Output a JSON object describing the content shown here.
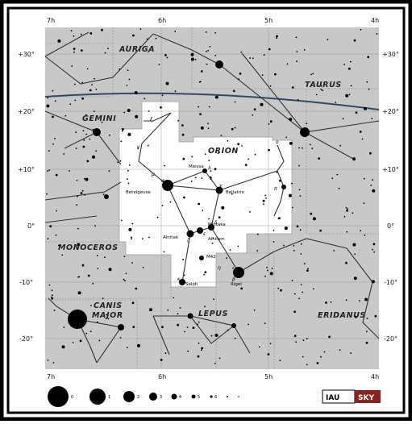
{
  "map": {
    "constellations": [
      {
        "key": "auriga",
        "label": "AURIGA"
      },
      {
        "key": "taurus",
        "label": "TAURUS"
      },
      {
        "key": "gemini",
        "label": "GEMINI"
      },
      {
        "key": "orion",
        "label": "ORION"
      },
      {
        "key": "monoceros",
        "label": "MONOCEROS"
      },
      {
        "key": "canis_major",
        "label_line1": "CANIS",
        "label_line2": "MAJOR"
      },
      {
        "key": "lepus",
        "label": "LEPUS"
      },
      {
        "key": "eridanus",
        "label": "ERIDANUS"
      }
    ],
    "ra_labels": [
      "7h",
      "6h",
      "5h",
      "4h"
    ],
    "dec_labels": [
      "+30°",
      "+20°",
      "+10°",
      "0°",
      "-10°",
      "-20°"
    ],
    "stars": {
      "betelgeuse": "Betelgeuse",
      "bellatrix": "Bellatrix",
      "meissa": "Meissa",
      "mintaka": "Mintaka",
      "alnitak": "Alnitak",
      "alnilam": "Alnilam",
      "m42": "M42",
      "saiph": "Saiph",
      "rigel": "Rigel"
    },
    "bayer": {
      "alpha": "α",
      "gamma": "γ",
      "lambda": "λ",
      "delta": "δ",
      "epsilon": "ε",
      "zeta": "ζ",
      "kappa": "κ",
      "beta": "β",
      "mu": "μ",
      "nu": "ν",
      "xi": "ξ",
      "eta": "η",
      "pi": "π",
      "omicron": "ο"
    },
    "legend": {
      "magnitudes": [
        "0",
        "1",
        "2",
        "3",
        "4",
        "5",
        "6"
      ]
    },
    "logo": {
      "left": "IAU",
      "right": "SKY"
    }
  }
}
